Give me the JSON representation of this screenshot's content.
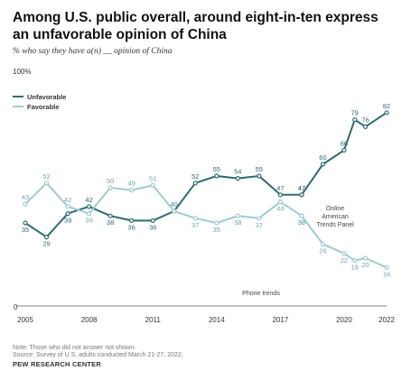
{
  "header": {
    "title": "Among U.S. public overall, around eight-in-ten express an unfavorable opinion of China",
    "subtitle": "% who say they have a(n) __ opinion of China"
  },
  "footer": {
    "note": "Note: Those who did not answer not shown.",
    "source": "Source: Survey of U.S. adults conducted March 21-27, 2022.",
    "org": "PEW RESEARCH CENTER"
  },
  "colors": {
    "unfavorable": "#2e6b72",
    "favorable": "#9fcbd0",
    "axis": "#555555",
    "text": "#444444"
  },
  "chart_data": {
    "type": "line",
    "title": "Among U.S. public overall, around eight-in-ten express an unfavorable opinion of China",
    "subtitle": "% who say they have a(n) __ opinion of China",
    "y_top_label": "100%",
    "y_bottom_label": "0",
    "ylim": [
      0,
      100
    ],
    "xlim": [
      2005,
      2022
    ],
    "x_ticks": [
      "2005",
      "2008",
      "2011",
      "2014",
      "2017",
      "2020",
      "2022"
    ],
    "legend": {
      "placement": "top-left",
      "entries": [
        "Unfavorable",
        "Favorable"
      ]
    },
    "annotations": {
      "phone": "Phone trends",
      "online": [
        "Online",
        "American",
        "Trends Panel"
      ]
    },
    "series": [
      {
        "name": "Unfavorable",
        "segment": "Phone trends",
        "color": "#2e6b72",
        "x": [
          2005,
          2006,
          2007,
          2008,
          2009,
          2010,
          2011,
          2012,
          2013,
          2014,
          2015,
          2016,
          2017,
          2018
        ],
        "y": [
          35,
          29,
          39,
          42,
          38,
          36,
          36,
          40,
          52,
          55,
          54,
          55,
          47,
          47
        ],
        "labels": [
          "35",
          "29",
          "39",
          "42",
          "38",
          "36",
          "36",
          "40",
          "52",
          "55",
          "54",
          "55",
          "47",
          "47"
        ]
      },
      {
        "name": "Favorable",
        "segment": "Phone trends",
        "color": "#9fcbd0",
        "x": [
          2005,
          2006,
          2007,
          2008,
          2009,
          2010,
          2011,
          2012,
          2013,
          2014,
          2015,
          2016,
          2017,
          2018
        ],
        "y": [
          43,
          52,
          42,
          39,
          50,
          49,
          51,
          40,
          37,
          35,
          38,
          37,
          44,
          38
        ],
        "labels": [
          "43",
          "52",
          "42",
          "39",
          "50",
          "49",
          "51",
          "40",
          "37",
          "35",
          "38",
          "37",
          "44",
          "38"
        ]
      },
      {
        "name": "Unfavorable",
        "segment": "Online American Trends Panel",
        "color": "#2e6b72",
        "x": [
          2018,
          2019,
          2020,
          2020.5,
          2021,
          2022
        ],
        "y": [
          47,
          60,
          66,
          79,
          76,
          82
        ],
        "labels": [
          "47",
          "60",
          "66",
          "79",
          "76",
          "82"
        ]
      },
      {
        "name": "Favorable",
        "segment": "Online American Trends Panel",
        "color": "#9fcbd0",
        "x": [
          2018,
          2019,
          2020,
          2020.5,
          2021,
          2022
        ],
        "y": [
          38,
          26,
          22,
          19,
          20,
          16
        ],
        "labels": [
          "38",
          "26",
          "22",
          "19",
          "20",
          "16"
        ]
      }
    ]
  }
}
